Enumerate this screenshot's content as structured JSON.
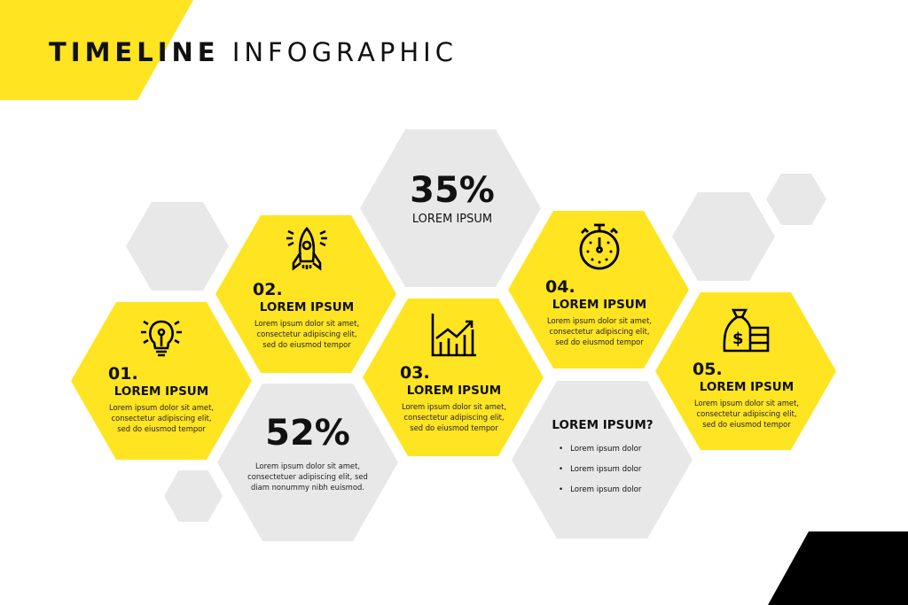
{
  "title": {
    "bold": "TIMELINE",
    "light": "INFOGRAPHIC"
  },
  "colors": {
    "accent": "#FFE422",
    "gray": "#E8E8E8",
    "dark": "#000000"
  },
  "steps": [
    {
      "number": "01.",
      "heading": "LOREM IPSUM",
      "lines": [
        "Lorem ipsum dolor sit amet,",
        "consectetur adipiscing elit,",
        "sed do eiusmod tempor"
      ],
      "icon": "lightbulb-icon"
    },
    {
      "number": "02.",
      "heading": "LOREM IPSUM",
      "lines": [
        "Lorem ipsum dolor sit amet,",
        "consectetur adipiscing elit,",
        "sed do eiusmod tempor"
      ],
      "icon": "rocket-icon"
    },
    {
      "number": "03.",
      "heading": "LOREM IPSUM",
      "lines": [
        "Lorem ipsum dolor sit amet,",
        "consectetur adipiscing elit,",
        "sed do eiusmod tempor"
      ],
      "icon": "growth-chart-icon"
    },
    {
      "number": "04.",
      "heading": "LOREM IPSUM",
      "lines": [
        "Lorem ipsum dolor sit amet,",
        "consectetur adipiscing elit,",
        "sed do eiusmod tempor"
      ],
      "icon": "stopwatch-icon"
    },
    {
      "number": "05.",
      "heading": "LOREM IPSUM",
      "lines": [
        "Lorem ipsum dolor sit amet,",
        "consectetur adipiscing elit,",
        "sed do eiusmod tempor"
      ],
      "icon": "money-bag-icon"
    }
  ],
  "stat1": {
    "value": "35%",
    "label": "LOREM IPSUM"
  },
  "stat2": {
    "value": "52%",
    "lines": [
      "Lorem ipsum dolor sit amet,",
      "consectetuer adipiscing elit, sed",
      "diam nonummy nibh euismod."
    ]
  },
  "question": {
    "heading": "LOREM IPSUM?",
    "bullets": [
      "Lorem ipsum dolor",
      "Lorem ipsum dolor",
      "Lorem ipsum dolor"
    ]
  }
}
